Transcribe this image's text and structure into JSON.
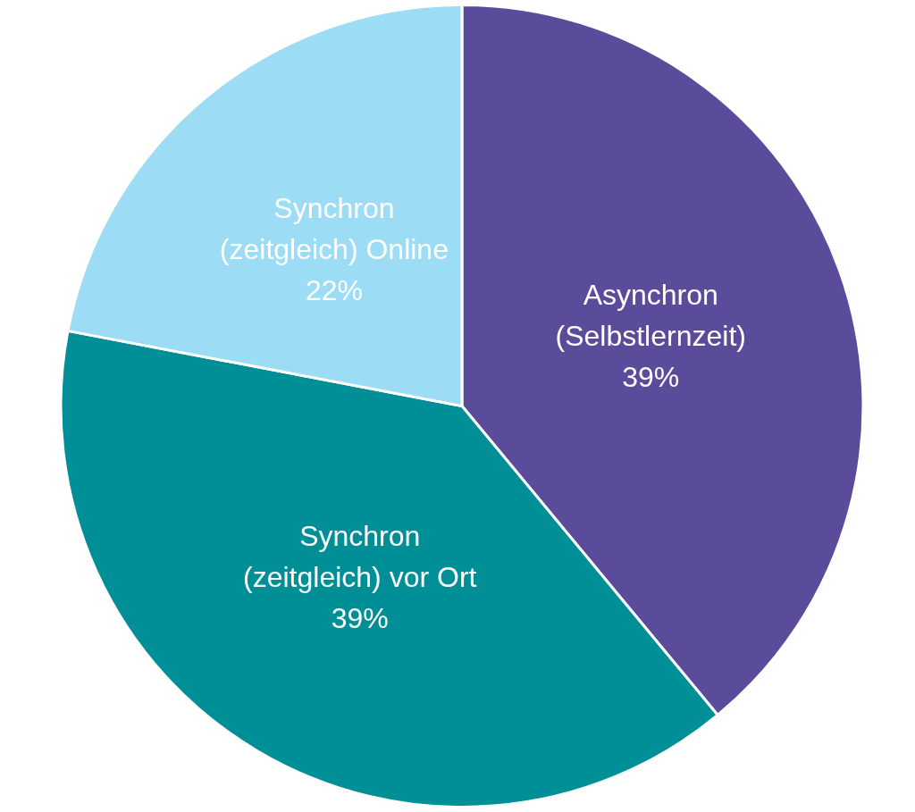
{
  "chart_data": {
    "type": "pie",
    "categories": [
      "Asynchron (Selbstlernzeit)",
      "Synchron (zeitgleich) vor Ort",
      "Synchron (zeitgleich) Online"
    ],
    "values": [
      39,
      39,
      22
    ],
    "colors": [
      "#5a4b9b",
      "#008f96",
      "#9ddcf5"
    ],
    "value_labels": [
      "39%",
      "39%",
      "22%"
    ]
  }
}
